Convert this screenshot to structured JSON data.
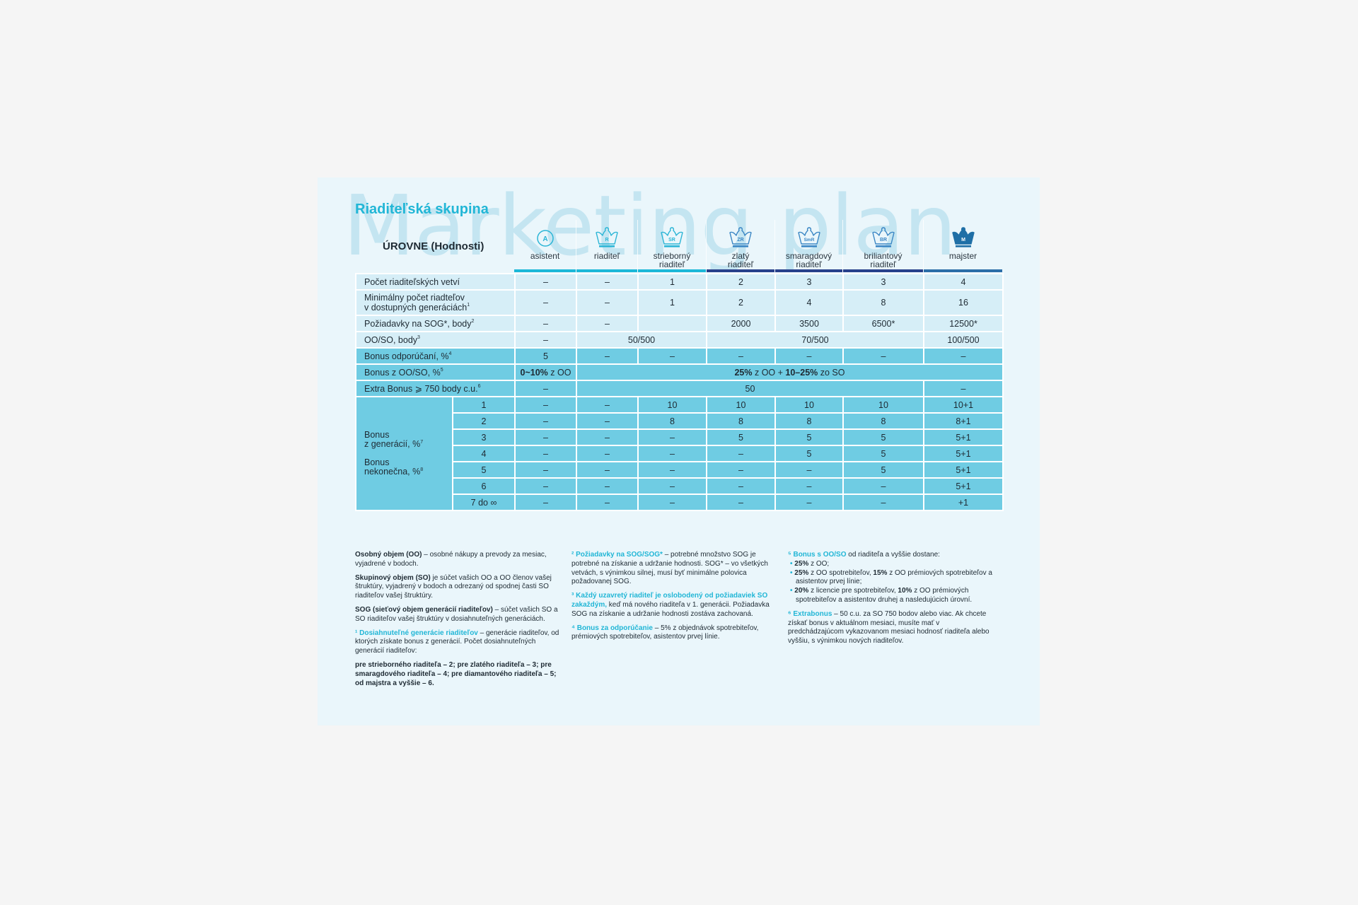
{
  "watermark": "Marketing plan",
  "title": "Riaditeľská skupina",
  "levels_heading": "ÚROVNE (Hodnosti)",
  "colors": {
    "accent": "#21b6d6",
    "row_light": "#d6eef7",
    "row_dark": "#6fcce3",
    "bar_cyan": "#1cb8d8",
    "bar_navy": "#27408b",
    "bar_blue": "#2c6ea8"
  },
  "levels": [
    {
      "name": "asistent",
      "badge": "A",
      "icon": "circle-badge-icon",
      "bar": "#1cb8d8",
      "color": "#2bb5d6",
      "filled": false
    },
    {
      "name": "riaditeľ",
      "badge": "R",
      "icon": "crown-icon",
      "bar": "#1cb8d8",
      "color": "#2bb5d6",
      "filled": false
    },
    {
      "name": "strieborný\nriaditeľ",
      "badge": "SR",
      "icon": "crown-icon",
      "bar": "#1cb8d8",
      "color": "#2bb5d6",
      "filled": false
    },
    {
      "name": "zlatý\nriaditeľ",
      "badge": "ZR",
      "icon": "crown-icon",
      "bar": "#27408b",
      "color": "#3a86c4",
      "filled": false
    },
    {
      "name": "smaragdový\nriaditeľ",
      "badge": "SmR",
      "icon": "crown-icon",
      "bar": "#27408b",
      "color": "#3a86c4",
      "filled": false
    },
    {
      "name": "briliantový\nriaditeľ",
      "badge": "BR",
      "icon": "crown-icon",
      "bar": "#27408b",
      "color": "#3a86c4",
      "filled": false
    },
    {
      "name": "majster",
      "badge": "M",
      "icon": "crown-filled-icon",
      "bar": "#2c6ea8",
      "color": "#1f6fa6",
      "filled": true
    }
  ],
  "rows": [
    {
      "style": "light",
      "label": "Počet riaditeľských vetví",
      "sup": "",
      "cells": [
        {
          "v": "–"
        },
        {
          "v": "–"
        },
        {
          "v": "1"
        },
        {
          "v": "2"
        },
        {
          "v": "3"
        },
        {
          "v": "3"
        },
        {
          "v": "4"
        }
      ]
    },
    {
      "style": "light",
      "label": "Minimálny počet riadteľov\nv dostupných generáciách",
      "sup": "1",
      "cells": [
        {
          "v": "–"
        },
        {
          "v": "–"
        },
        {
          "v": "1"
        },
        {
          "v": "2"
        },
        {
          "v": "4"
        },
        {
          "v": "8"
        },
        {
          "v": "16"
        }
      ]
    },
    {
      "style": "light",
      "label": "Požiadavky na SOG*, body",
      "sup": "2",
      "cells": [
        {
          "v": "–"
        },
        {
          "v": "–"
        },
        {
          "v": ""
        },
        {
          "v": "2000"
        },
        {
          "v": "3500"
        },
        {
          "v": "6500*"
        },
        {
          "v": "12500*"
        }
      ]
    },
    {
      "style": "light",
      "label": "OO/SO, body",
      "sup": "3",
      "cells": [
        {
          "v": "–"
        },
        {
          "v": "50/500",
          "span": 2
        },
        {
          "v": "70/500",
          "span": 3
        },
        {
          "v": "100/500"
        }
      ]
    },
    {
      "style": "dark",
      "label": "Bonus odporúčaní, %",
      "sup": "4",
      "cells": [
        {
          "v": "5"
        },
        {
          "v": "–"
        },
        {
          "v": "–"
        },
        {
          "v": "–"
        },
        {
          "v": "–"
        },
        {
          "v": "–"
        },
        {
          "v": "–"
        }
      ]
    },
    {
      "style": "dark",
      "label": "Bonus z OO/SO, %",
      "sup": "5",
      "cells": [
        {
          "parts": [
            {
              "t": "0~10%",
              "b": true
            },
            {
              "t": " z OO"
            }
          ]
        },
        {
          "span": 6,
          "parts": [
            {
              "t": "25%",
              "b": true
            },
            {
              "t": " z OO + "
            },
            {
              "t": "10–25%",
              "b": true
            },
            {
              "t": " zo SO"
            }
          ]
        }
      ]
    },
    {
      "style": "dark",
      "label": "Extra Bonus ⩾ 750 body c.u.",
      "sup": "6",
      "cells": [
        {
          "v": "–"
        },
        {
          "v": "50",
          "span": 5
        },
        {
          "v": "–"
        }
      ]
    }
  ],
  "generations": {
    "label_gen": "Bonus\nz generácií, %",
    "sup_gen": "7",
    "label_inf": "Bonus\nnekonečna, %",
    "sup_inf": "8",
    "rows": [
      {
        "gen": "1",
        "cells": [
          "–",
          "–",
          "10",
          "10",
          "10",
          "10",
          "10+1"
        ]
      },
      {
        "gen": "2",
        "cells": [
          "–",
          "–",
          "8",
          "8",
          "8",
          "8",
          "8+1"
        ]
      },
      {
        "gen": "3",
        "cells": [
          "–",
          "–",
          "–",
          "5",
          "5",
          "5",
          "5+1"
        ]
      },
      {
        "gen": "4",
        "cells": [
          "–",
          "–",
          "–",
          "–",
          "5",
          "5",
          "5+1"
        ]
      },
      {
        "gen": "5",
        "cells": [
          "–",
          "–",
          "–",
          "–",
          "–",
          "5",
          "5+1"
        ]
      },
      {
        "gen": "6",
        "cells": [
          "–",
          "–",
          "–",
          "–",
          "–",
          "–",
          "5+1"
        ]
      },
      {
        "gen": "7 do ∞",
        "cells": [
          "–",
          "–",
          "–",
          "–",
          "–",
          "–",
          "+1"
        ]
      }
    ]
  },
  "footnotes": [
    [
      [
        {
          "t": "Osobný objem (OO)",
          "s": "b"
        },
        {
          "t": " – osobné nákupy a prevody za mesiac, vyjadrené v bodoch."
        }
      ],
      [
        {
          "t": "Skupinový objem (SO)",
          "s": "b"
        },
        {
          "t": " je súčet vašich OO a OO členov vašej štruktúry, vyjadrený v bodoch a odrezaný od spodnej časti SO riaditeľov vašej štruktúry."
        }
      ],
      [
        {
          "t": "SOG (sieťový objem generácií riaditeľov)",
          "s": "b"
        },
        {
          "t": " – súčet vašich SO a SO riaditeľov vašej štruktúry v dosiahnuteľných generáciách."
        }
      ],
      [
        {
          "t": "¹ Dosiahnuteľné generácie riaditeľov",
          "s": "c"
        },
        {
          "t": " – generácie riaditeľov, od ktorých získate bonus z generácií. Počet dosiahnuteľných generácií riaditeľov:"
        }
      ],
      [
        {
          "t": "pre strieborného riaditeľa – 2; pre zlatého riaditeľa – 3; pre smaragdového riaditeľa – 4; pre diamantového riaditeľa – 5; od majstra a vyššie – 6.",
          "s": "b"
        }
      ]
    ],
    [
      [
        {
          "t": "² Požiadavky na SOG/SOG*",
          "s": "c"
        },
        {
          "t": " – potrebné množstvo SOG je potrebné na získanie a udržanie hodnosti. SOG* – vo všetkých vetvách, s výnimkou silnej, musí byť minimálne polovica požadovanej SOG."
        }
      ],
      [
        {
          "t": "³ Každý uzavretý riaditeľ je oslobodený od požiadaviek SO zakaždým,",
          "s": "c"
        },
        {
          "t": " keď má nového riaditeľa v 1. generácii. Požiadavka SOG na získanie a udržanie hodnosti zostáva zachovaná."
        }
      ],
      [
        {
          "t": "⁴ Bonus za odporúčanie",
          "s": "c"
        },
        {
          "t": " – 5% z objednávok spotrebiteľov, prémiových spotrebiteľov, asistentov prvej línie."
        }
      ]
    ],
    [
      [
        {
          "t": "⁵ Bonus s OO/SO",
          "s": "c"
        },
        {
          "t": " od riaditeľa a vyššie dostane:"
        },
        {
          "t": "• ",
          "s": "cb"
        },
        {
          "t": "25%",
          "s": "b"
        },
        {
          "t": " z OO;"
        },
        {
          "t": "• ",
          "s": "cb"
        },
        {
          "t": "25%",
          "s": "b"
        },
        {
          "t": " z OO spotrebiteľov, "
        },
        {
          "t": "15%",
          "s": "b"
        },
        {
          "t": " z OO prémiových spotrebiteľov a asistentov prvej línie;"
        },
        {
          "t": "• ",
          "s": "cb"
        },
        {
          "t": "20%",
          "s": "b"
        },
        {
          "t": " z licencie pre spotrebiteľov, "
        },
        {
          "t": "10%",
          "s": "b"
        },
        {
          "t": " z OO prémiových spotrebiteľov a asistentov druhej a nasledujúcich úrovní."
        }
      ],
      [
        {
          "t": "⁶ Extrabonus",
          "s": "c"
        },
        {
          "t": " – 50 c.u. za SO 750 bodov alebo viac. Ak chcete získať bonus v aktuálnom mesiaci, musíte mať v predchádzajúcom vykazovanom mesiaci hodnosť riaditeľa alebo vyššiu, s výnimkou nových riaditeľov."
        }
      ]
    ]
  ]
}
